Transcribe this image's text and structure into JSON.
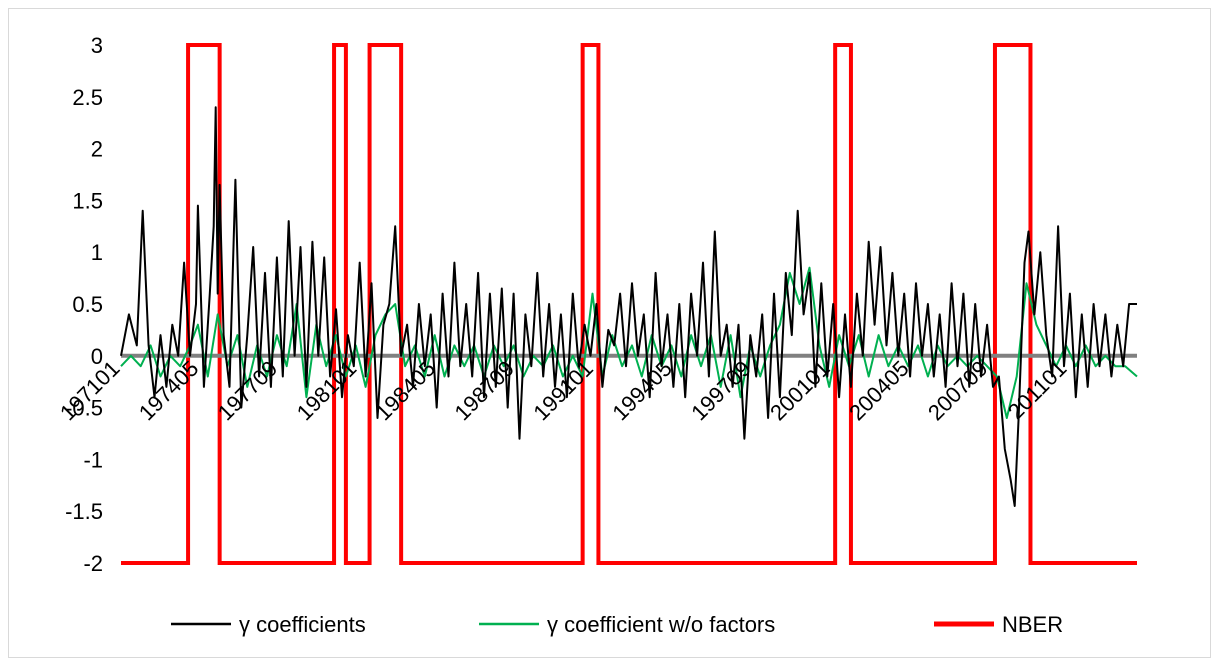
{
  "chart_data": {
    "type": "line",
    "ylim": [
      -2,
      3
    ],
    "y_ticks": [
      "3",
      "2.5",
      "2",
      "1.5",
      "1",
      "0.5",
      "0",
      "-0.5",
      "-1",
      "-1.5",
      "-2"
    ],
    "x_tick_labels": [
      "197101",
      "197405",
      "197709",
      "198101",
      "198405",
      "198709",
      "199101",
      "199405",
      "199709",
      "200101",
      "200405",
      "200709",
      "201101"
    ],
    "x_range": [
      "197101",
      "201312"
    ],
    "legend_position": "bottom",
    "grid": false,
    "series": [
      {
        "name": "γ coefficients",
        "color": "#000000",
        "points": [
          [
            "197101",
            0.0
          ],
          [
            "197105",
            0.4
          ],
          [
            "197109",
            0.1
          ],
          [
            "197112",
            1.4
          ],
          [
            "197203",
            0.1
          ],
          [
            "197206",
            -0.4
          ],
          [
            "197209",
            0.2
          ],
          [
            "197212",
            -0.3
          ],
          [
            "197303",
            0.3
          ],
          [
            "197306",
            0.0
          ],
          [
            "197309",
            0.9
          ],
          [
            "197312",
            0.0
          ],
          [
            "197403",
            0.5
          ],
          [
            "197404",
            1.45
          ],
          [
            "197407",
            -0.3
          ],
          [
            "197410",
            0.6
          ],
          [
            "197412",
            1.25
          ],
          [
            "197501",
            2.4
          ],
          [
            "197502",
            0.6
          ],
          [
            "197503",
            1.65
          ],
          [
            "197505",
            0.2
          ],
          [
            "197508",
            -0.3
          ],
          [
            "197511",
            1.7
          ],
          [
            "197602",
            -0.5
          ],
          [
            "197605",
            0.2
          ],
          [
            "197608",
            1.05
          ],
          [
            "197611",
            -0.2
          ],
          [
            "197702",
            0.8
          ],
          [
            "197705",
            -0.3
          ],
          [
            "197708",
            0.95
          ],
          [
            "197711",
            -0.2
          ],
          [
            "197802",
            1.3
          ],
          [
            "197805",
            0.0
          ],
          [
            "197808",
            1.05
          ],
          [
            "197811",
            -0.3
          ],
          [
            "197902",
            1.1
          ],
          [
            "197905",
            0.0
          ],
          [
            "197908",
            0.95
          ],
          [
            "197911",
            -0.2
          ],
          [
            "198002",
            0.45
          ],
          [
            "198005",
            -0.4
          ],
          [
            "198008",
            0.2
          ],
          [
            "198011",
            -0.1
          ],
          [
            "198102",
            0.9
          ],
          [
            "198105",
            -0.2
          ],
          [
            "198108",
            0.7
          ],
          [
            "198111",
            -0.6
          ],
          [
            "198202",
            0.3
          ],
          [
            "198205",
            0.5
          ],
          [
            "198208",
            1.25
          ],
          [
            "198211",
            0.0
          ],
          [
            "198302",
            0.3
          ],
          [
            "198305",
            -0.3
          ],
          [
            "198308",
            0.5
          ],
          [
            "198311",
            -0.1
          ],
          [
            "198402",
            0.4
          ],
          [
            "198405",
            -0.5
          ],
          [
            "198408",
            0.6
          ],
          [
            "198411",
            -0.2
          ],
          [
            "198502",
            0.9
          ],
          [
            "198505",
            -0.1
          ],
          [
            "198508",
            0.5
          ],
          [
            "198511",
            -0.2
          ],
          [
            "198602",
            0.8
          ],
          [
            "198605",
            -0.4
          ],
          [
            "198608",
            0.6
          ],
          [
            "198611",
            -0.3
          ],
          [
            "198702",
            0.65
          ],
          [
            "198705",
            -0.5
          ],
          [
            "198708",
            0.6
          ],
          [
            "198711",
            -0.8
          ],
          [
            "198802",
            0.4
          ],
          [
            "198805",
            -0.1
          ],
          [
            "198808",
            0.8
          ],
          [
            "198811",
            -0.2
          ],
          [
            "198902",
            0.5
          ],
          [
            "198905",
            -0.3
          ],
          [
            "198908",
            0.4
          ],
          [
            "198911",
            -0.4
          ],
          [
            "199002",
            0.6
          ],
          [
            "199005",
            -0.1
          ],
          [
            "199008",
            0.3
          ],
          [
            "199011",
            0.0
          ],
          [
            "199102",
            0.5
          ],
          [
            "199105",
            -0.3
          ],
          [
            "199108",
            0.25
          ],
          [
            "199111",
            0.1
          ],
          [
            "199202",
            0.6
          ],
          [
            "199205",
            -0.1
          ],
          [
            "199208",
            0.7
          ],
          [
            "199211",
            0.0
          ],
          [
            "199302",
            0.4
          ],
          [
            "199305",
            -0.4
          ],
          [
            "199308",
            0.8
          ],
          [
            "199311",
            -0.1
          ],
          [
            "199402",
            0.4
          ],
          [
            "199405",
            -0.3
          ],
          [
            "199408",
            0.5
          ],
          [
            "199411",
            -0.4
          ],
          [
            "199502",
            0.6
          ],
          [
            "199505",
            0.0
          ],
          [
            "199508",
            0.9
          ],
          [
            "199511",
            -0.2
          ],
          [
            "199602",
            1.2
          ],
          [
            "199605",
            0.0
          ],
          [
            "199608",
            0.3
          ],
          [
            "199611",
            -0.3
          ],
          [
            "199702",
            0.3
          ],
          [
            "199705",
            -0.8
          ],
          [
            "199708",
            0.2
          ],
          [
            "199711",
            -0.2
          ],
          [
            "199802",
            0.4
          ],
          [
            "199805",
            -0.6
          ],
          [
            "199808",
            0.6
          ],
          [
            "199811",
            -0.4
          ],
          [
            "199902",
            0.8
          ],
          [
            "199905",
            0.2
          ],
          [
            "199908",
            1.4
          ],
          [
            "199911",
            0.4
          ],
          [
            "200002",
            0.8
          ],
          [
            "200005",
            -0.3
          ],
          [
            "200008",
            0.7
          ],
          [
            "200011",
            -0.2
          ],
          [
            "200102",
            0.5
          ],
          [
            "200105",
            -0.4
          ],
          [
            "200108",
            0.4
          ],
          [
            "200111",
            -0.3
          ],
          [
            "200202",
            0.6
          ],
          [
            "200205",
            0.0
          ],
          [
            "200208",
            1.1
          ],
          [
            "200211",
            0.3
          ],
          [
            "200302",
            1.05
          ],
          [
            "200305",
            0.1
          ],
          [
            "200308",
            0.8
          ],
          [
            "200311",
            0.0
          ],
          [
            "200402",
            0.6
          ],
          [
            "200405",
            -0.2
          ],
          [
            "200408",
            0.7
          ],
          [
            "200411",
            0.0
          ],
          [
            "200502",
            0.5
          ],
          [
            "200505",
            -0.2
          ],
          [
            "200508",
            0.4
          ],
          [
            "200511",
            -0.3
          ],
          [
            "200602",
            0.7
          ],
          [
            "200605",
            -0.1
          ],
          [
            "200608",
            0.6
          ],
          [
            "200611",
            -0.3
          ],
          [
            "200702",
            0.5
          ],
          [
            "200705",
            -0.2
          ],
          [
            "200708",
            0.3
          ],
          [
            "200711",
            -0.3
          ],
          [
            "200802",
            -0.2
          ],
          [
            "200805",
            -0.9
          ],
          [
            "200808",
            -1.2
          ],
          [
            "200810",
            -1.45
          ],
          [
            "200812",
            -0.6
          ],
          [
            "200903",
            0.9
          ],
          [
            "200905",
            1.2
          ],
          [
            "200908",
            0.4
          ],
          [
            "200911",
            1.0
          ],
          [
            "201002",
            0.2
          ],
          [
            "201005",
            -0.2
          ],
          [
            "201008",
            1.25
          ],
          [
            "201011",
            -0.1
          ],
          [
            "201102",
            0.6
          ],
          [
            "201105",
            -0.4
          ],
          [
            "201108",
            0.4
          ],
          [
            "201111",
            -0.3
          ],
          [
            "201202",
            0.5
          ],
          [
            "201205",
            -0.1
          ],
          [
            "201208",
            0.4
          ],
          [
            "201211",
            -0.2
          ],
          [
            "201302",
            0.3
          ],
          [
            "201305",
            -0.1
          ],
          [
            "201308",
            0.5
          ],
          [
            "201312",
            0.5
          ]
        ]
      },
      {
        "name": "γ coefficient w/o factors",
        "color": "#00b050",
        "points": [
          [
            "197101",
            -0.1
          ],
          [
            "197106",
            0.0
          ],
          [
            "197111",
            -0.1
          ],
          [
            "197204",
            0.1
          ],
          [
            "197209",
            -0.2
          ],
          [
            "197302",
            0.0
          ],
          [
            "197307",
            -0.1
          ],
          [
            "197312",
            0.1
          ],
          [
            "197404",
            0.3
          ],
          [
            "197409",
            -0.2
          ],
          [
            "197502",
            0.4
          ],
          [
            "197507",
            -0.1
          ],
          [
            "197512",
            0.2
          ],
          [
            "197605",
            -0.3
          ],
          [
            "197610",
            0.1
          ],
          [
            "197703",
            -0.2
          ],
          [
            "197708",
            0.2
          ],
          [
            "197801",
            -0.1
          ],
          [
            "197806",
            0.5
          ],
          [
            "197811",
            -0.4
          ],
          [
            "197904",
            0.3
          ],
          [
            "197909",
            -0.1
          ],
          [
            "198002",
            0.2
          ],
          [
            "198007",
            -0.2
          ],
          [
            "198012",
            0.1
          ],
          [
            "198105",
            -0.3
          ],
          [
            "198110",
            0.2
          ],
          [
            "198203",
            0.4
          ],
          [
            "198208",
            0.5
          ],
          [
            "198301",
            -0.1
          ],
          [
            "198306",
            0.1
          ],
          [
            "198311",
            -0.2
          ],
          [
            "198404",
            0.2
          ],
          [
            "198409",
            -0.2
          ],
          [
            "198502",
            0.1
          ],
          [
            "198507",
            -0.1
          ],
          [
            "198512",
            0.1
          ],
          [
            "198605",
            -0.2
          ],
          [
            "198610",
            0.1
          ],
          [
            "198703",
            -0.1
          ],
          [
            "198708",
            0.1
          ],
          [
            "198801",
            -0.2
          ],
          [
            "198806",
            0.0
          ],
          [
            "198811",
            -0.1
          ],
          [
            "198904",
            0.1
          ],
          [
            "198909",
            -0.2
          ],
          [
            "199002",
            0.0
          ],
          [
            "199007",
            -0.2
          ],
          [
            "199012",
            0.6
          ],
          [
            "199105",
            -0.2
          ],
          [
            "199110",
            0.2
          ],
          [
            "199203",
            -0.1
          ],
          [
            "199208",
            0.1
          ],
          [
            "199301",
            -0.2
          ],
          [
            "199306",
            0.2
          ],
          [
            "199311",
            -0.1
          ],
          [
            "199404",
            0.1
          ],
          [
            "199409",
            -0.2
          ],
          [
            "199502",
            0.2
          ],
          [
            "199507",
            -0.1
          ],
          [
            "199512",
            0.2
          ],
          [
            "199605",
            -0.3
          ],
          [
            "199610",
            0.2
          ],
          [
            "199703",
            -0.4
          ],
          [
            "199708",
            0.1
          ],
          [
            "199801",
            -0.2
          ],
          [
            "199806",
            0.1
          ],
          [
            "199811",
            0.3
          ],
          [
            "199904",
            0.8
          ],
          [
            "199909",
            0.5
          ],
          [
            "200002",
            0.85
          ],
          [
            "200007",
            0.1
          ],
          [
            "200012",
            -0.3
          ],
          [
            "200105",
            0.2
          ],
          [
            "200110",
            -0.1
          ],
          [
            "200203",
            0.2
          ],
          [
            "200208",
            -0.2
          ],
          [
            "200301",
            0.2
          ],
          [
            "200306",
            -0.1
          ],
          [
            "200311",
            0.1
          ],
          [
            "200404",
            -0.1
          ],
          [
            "200409",
            0.1
          ],
          [
            "200502",
            -0.2
          ],
          [
            "200507",
            0.1
          ],
          [
            "200512",
            -0.1
          ],
          [
            "200605",
            0.0
          ],
          [
            "200610",
            -0.1
          ],
          [
            "200703",
            0.0
          ],
          [
            "200708",
            -0.1
          ],
          [
            "200801",
            -0.2
          ],
          [
            "200806",
            -0.6
          ],
          [
            "200811",
            -0.2
          ],
          [
            "200904",
            0.7
          ],
          [
            "200909",
            0.3
          ],
          [
            "201002",
            0.1
          ],
          [
            "201007",
            -0.1
          ],
          [
            "201012",
            0.1
          ],
          [
            "201105",
            -0.1
          ],
          [
            "201110",
            0.1
          ],
          [
            "201203",
            -0.1
          ],
          [
            "201208",
            0.0
          ],
          [
            "201301",
            -0.1
          ],
          [
            "201306",
            -0.1
          ],
          [
            "201312",
            -0.2
          ]
        ]
      },
      {
        "name": "NBER",
        "color": "#ff0000",
        "recession_high": 3,
        "baseline": -2,
        "recessions": [
          [
            "197311",
            "197503"
          ],
          [
            "198001",
            "198007"
          ],
          [
            "198107",
            "198211"
          ],
          [
            "199007",
            "199103"
          ],
          [
            "200103",
            "200111"
          ],
          [
            "200712",
            "200906"
          ]
        ]
      },
      {
        "name": "",
        "color": "#808080",
        "points": [
          [
            "197101",
            0
          ],
          [
            "201312",
            0
          ]
        ]
      }
    ]
  }
}
